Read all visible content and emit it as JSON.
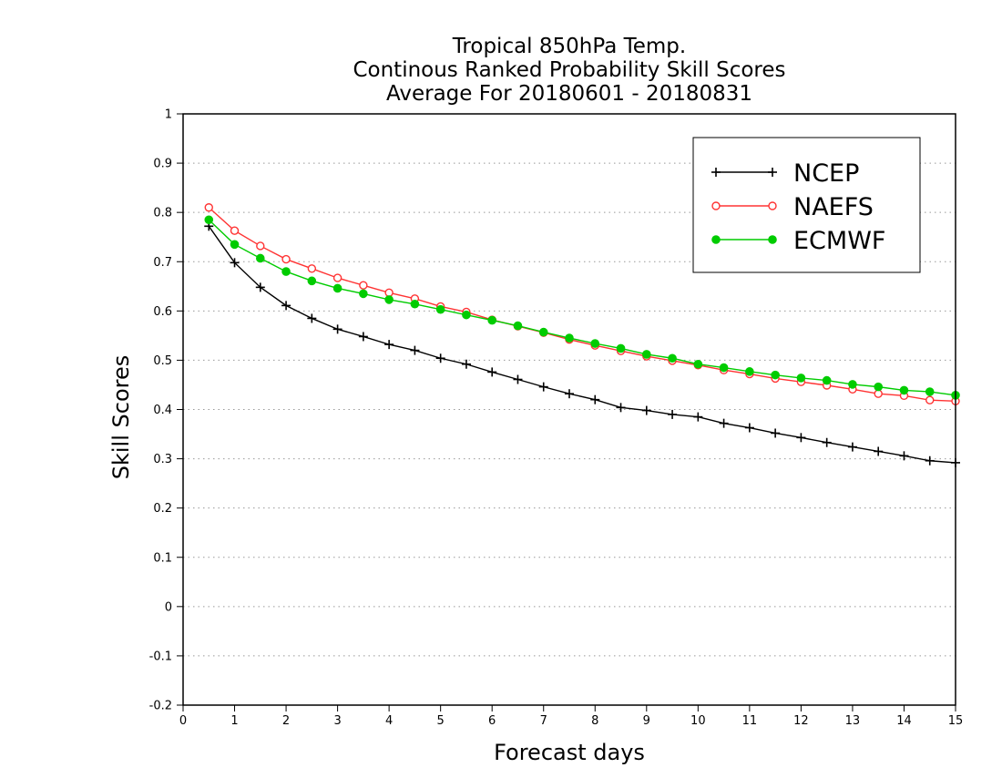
{
  "chart_data": {
    "type": "line",
    "title": [
      "Tropical 850hPa Temp.",
      "Continous Ranked Probability Skill Scores",
      "Average For 20180601 - 20180831"
    ],
    "xlabel": "Forecast days",
    "ylabel": "Skill Scores",
    "xlim": [
      0,
      15
    ],
    "ylim": [
      -0.2,
      1
    ],
    "xticks": [
      0,
      1,
      2,
      3,
      4,
      5,
      6,
      7,
      8,
      9,
      10,
      11,
      12,
      13,
      14,
      15
    ],
    "xtick_labels": [
      "0",
      "1",
      "2",
      "3",
      "4",
      "5",
      "6",
      "7",
      "8",
      "9",
      "10",
      "11",
      "12",
      "13",
      "14",
      "15"
    ],
    "yticks": [
      -0.2,
      -0.1,
      0,
      0.1,
      0.2,
      0.3,
      0.4,
      0.5,
      0.6,
      0.7,
      0.8,
      0.9,
      1
    ],
    "ytick_labels": [
      "-0.2",
      "-0.1",
      "0",
      "0.1",
      "0.2",
      "0.3",
      "0.4",
      "0.5",
      "0.6",
      "0.7",
      "0.8",
      "0.9",
      "1"
    ],
    "grid": "horizontal-dotted",
    "legend_position": "top-right",
    "x": [
      0.5,
      1,
      1.5,
      2,
      2.5,
      3,
      3.5,
      4,
      4.5,
      5,
      5.5,
      6,
      6.5,
      7,
      7.5,
      8,
      8.5,
      9,
      9.5,
      10,
      10.5,
      11,
      11.5,
      12,
      12.5,
      13,
      13.5,
      14,
      14.5,
      15
    ],
    "series": [
      {
        "name": "NCEP",
        "color": "#000000",
        "marker": "plus",
        "values": [
          0.772,
          0.698,
          0.648,
          0.611,
          0.585,
          0.563,
          0.548,
          0.532,
          0.52,
          0.504,
          0.492,
          0.476,
          0.461,
          0.446,
          0.432,
          0.42,
          0.404,
          0.398,
          0.39,
          0.385,
          0.372,
          0.363,
          0.352,
          0.343,
          0.333,
          0.324,
          0.315,
          0.306,
          0.296,
          0.292
        ]
      },
      {
        "name": "NAEFS",
        "color": "#ff3333",
        "marker": "open-circle",
        "values": [
          0.81,
          0.763,
          0.732,
          0.705,
          0.686,
          0.667,
          0.652,
          0.637,
          0.625,
          0.609,
          0.598,
          0.582,
          0.569,
          0.556,
          0.542,
          0.53,
          0.519,
          0.508,
          0.499,
          0.49,
          0.48,
          0.472,
          0.463,
          0.456,
          0.449,
          0.441,
          0.432,
          0.428,
          0.419,
          0.417
        ]
      },
      {
        "name": "ECMWF",
        "color": "#00cc00",
        "marker": "filled-circle",
        "values": [
          0.785,
          0.735,
          0.707,
          0.68,
          0.661,
          0.646,
          0.635,
          0.623,
          0.614,
          0.603,
          0.592,
          0.581,
          0.57,
          0.557,
          0.545,
          0.534,
          0.524,
          0.512,
          0.504,
          0.492,
          0.485,
          0.477,
          0.47,
          0.464,
          0.459,
          0.451,
          0.446,
          0.439,
          0.436,
          0.429
        ]
      }
    ]
  }
}
